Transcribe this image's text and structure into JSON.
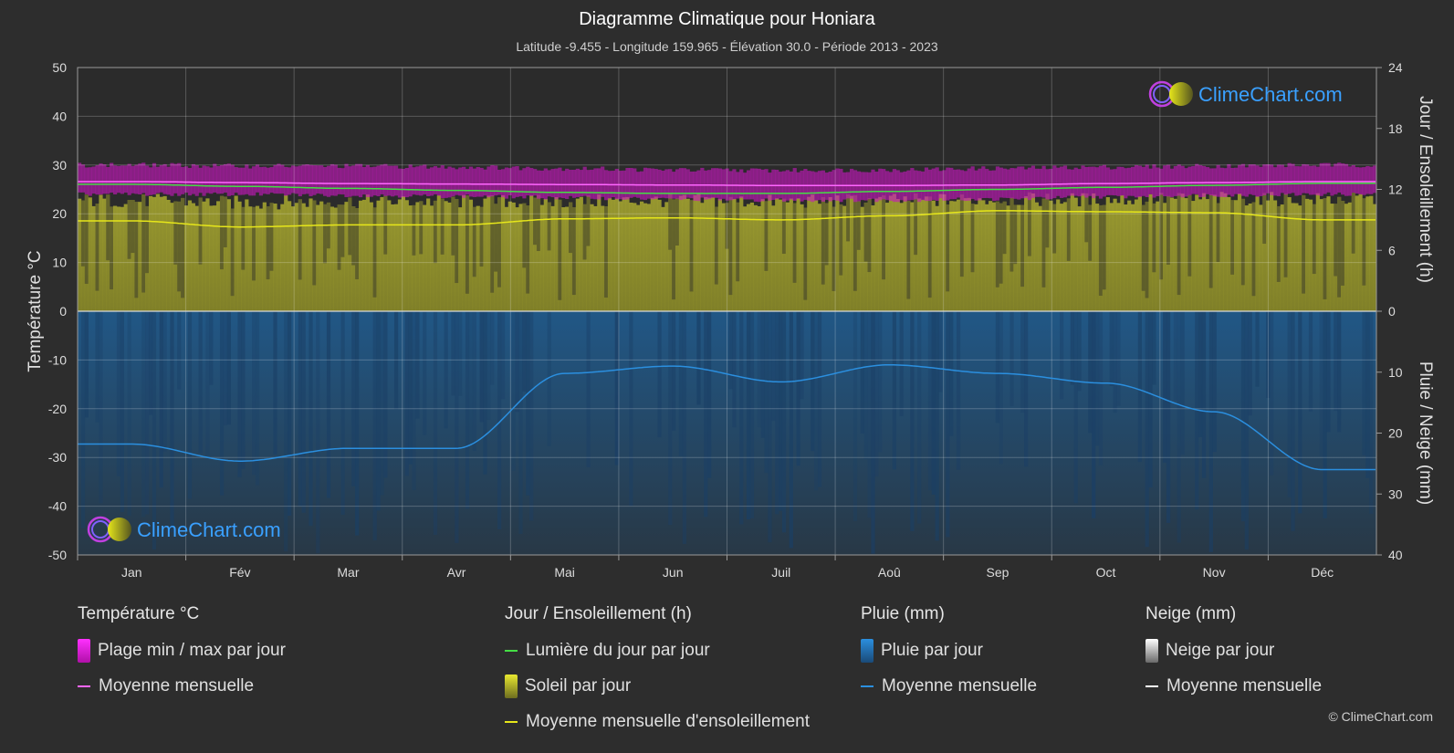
{
  "header": {
    "title": "Diagramme Climatique pour Honiara",
    "subtitle": "Latitude -9.455 - Longitude 159.965 - Élévation 30.0 - Période 2013 - 2023"
  },
  "chart_data": {
    "type": "area",
    "categories": [
      "Jan",
      "Fév",
      "Mar",
      "Avr",
      "Mai",
      "Jun",
      "Juil",
      "Aoû",
      "Sep",
      "Oct",
      "Nov",
      "Déc"
    ],
    "left_axis": {
      "label": "Température °C",
      "ylim": [
        -50,
        50
      ],
      "ticks": [
        "50",
        "40",
        "30",
        "20",
        "10",
        "0",
        "-10",
        "-20",
        "-30",
        "-40",
        "-50"
      ]
    },
    "right_axis_top": {
      "label": "Jour / Ensoleillement (h)",
      "ylim": [
        0,
        24
      ],
      "ticks": [
        "24",
        "18",
        "12",
        "6",
        "0"
      ]
    },
    "right_axis_bottom": {
      "label": "Pluie / Neige (mm)",
      "ylim": [
        0,
        40
      ],
      "ticks": [
        "0",
        "10",
        "20",
        "30",
        "40"
      ]
    },
    "series": [
      {
        "name": "Moyenne mensuelle",
        "group": "temperature",
        "unit": "°C",
        "color": "#ff66ff",
        "values": [
          26.6,
          26.4,
          26.2,
          26.1,
          26.0,
          25.9,
          25.8,
          25.8,
          25.9,
          26.2,
          26.4,
          26.6
        ]
      },
      {
        "name": "Plage min / max par jour",
        "group": "temperature",
        "unit": "°C",
        "color": "#d020c8",
        "min": [
          24.0,
          24.0,
          23.8,
          23.6,
          23.3,
          23.0,
          22.8,
          22.8,
          23.0,
          23.5,
          23.8,
          24.0
        ],
        "max": [
          30.0,
          29.8,
          29.8,
          29.6,
          29.3,
          29.0,
          28.9,
          29.0,
          29.3,
          29.6,
          29.8,
          30.0
        ]
      },
      {
        "name": "Lumière du jour par jour",
        "group": "sun",
        "unit": "h",
        "color": "#44dd44",
        "values": [
          12.5,
          12.3,
          12.1,
          11.9,
          11.7,
          11.6,
          11.6,
          11.8,
          12.0,
          12.2,
          12.4,
          12.6
        ]
      },
      {
        "name": "Moyenne mensuelle d'ensoleillement",
        "group": "sun",
        "unit": "h",
        "color": "#e6e61a",
        "values": [
          8.9,
          8.3,
          8.5,
          8.5,
          9.1,
          9.2,
          9.0,
          9.4,
          9.9,
          9.8,
          9.7,
          9.0
        ]
      },
      {
        "name": "Soleil par jour",
        "group": "sun",
        "unit": "h",
        "color": "#a5a52a",
        "values": [
          10.9,
          10.7,
          10.8,
          10.8,
          10.8,
          10.9,
          10.8,
          10.9,
          11.0,
          11.0,
          11.1,
          11.0
        ]
      },
      {
        "name": "Moyenne mensuelle",
        "group": "rain",
        "unit": "mm",
        "color": "#2b8fdf",
        "values": [
          21.8,
          24.6,
          22.5,
          22.5,
          10.2,
          9.0,
          11.6,
          8.8,
          10.2,
          11.8,
          16.5,
          26.0
        ]
      }
    ],
    "grid": true,
    "logo_text": "ClimeChart.com"
  },
  "legend": {
    "temperature": {
      "title": "Température °C",
      "range_label": "Plage min / max par jour",
      "mean_label": "Moyenne mensuelle"
    },
    "sun": {
      "title": "Jour / Ensoleillement (h)",
      "daylight_label": "Lumière du jour par jour",
      "sun_label": "Soleil par jour",
      "sun_mean_label": "Moyenne mensuelle d'ensoleillement"
    },
    "rain": {
      "title": "Pluie (mm)",
      "rain_label": "Pluie par jour",
      "mean_label": "Moyenne mensuelle"
    },
    "snow": {
      "title": "Neige (mm)",
      "snow_label": "Neige par jour",
      "mean_label": "Moyenne mensuelle"
    }
  },
  "footer": {
    "copyright": "© ClimeChart.com"
  },
  "colors": {
    "background": "#2d2d2d",
    "temp_range": "#d020c8",
    "temp_mean": "#ff66ff",
    "daylight": "#44dd44",
    "sun_fill": "#a5a52a",
    "sun_mean": "#e6e61a",
    "rain": "#2b8fdf",
    "snow": "#ffffff",
    "logo_text": "#3aa0ff"
  }
}
